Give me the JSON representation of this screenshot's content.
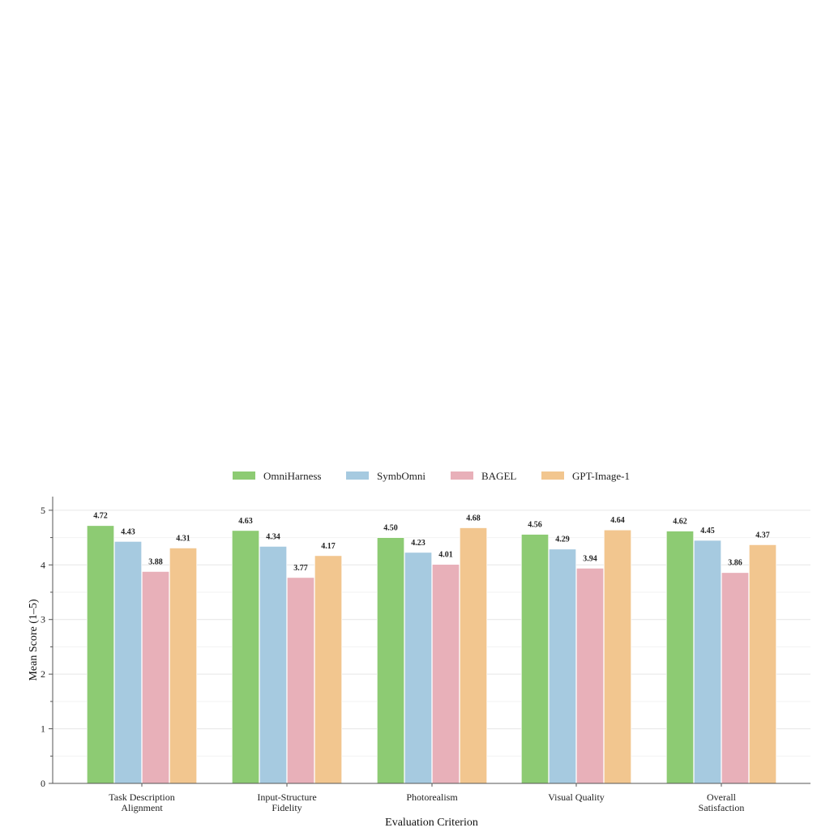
{
  "chart_data": {
    "type": "bar",
    "xlabel": "Evaluation Criterion",
    "ylabel": "Mean Score (1–5)",
    "ylim": [
      0,
      5.25
    ],
    "yticks": [
      0,
      1,
      2,
      3,
      4,
      5
    ],
    "grid": "horizontal",
    "legend_placement": "top-center",
    "categories": [
      [
        "Task Description",
        "Alignment"
      ],
      [
        "Input-Structure",
        "Fidelity"
      ],
      [
        "Photorealism"
      ],
      [
        "Visual Quality"
      ],
      [
        "Overall",
        "Satisfaction"
      ]
    ],
    "series": [
      {
        "name": "OmniHarness",
        "color": "#8dcb73",
        "values": [
          4.72,
          4.63,
          4.5,
          4.56,
          4.62
        ],
        "labels": [
          "4.72",
          "4.63",
          "4.50",
          "4.56",
          "4.62"
        ]
      },
      {
        "name": "SymbOmni",
        "color": "#a6cae0",
        "values": [
          4.43,
          4.34,
          4.23,
          4.29,
          4.45
        ],
        "labels": [
          "4.43",
          "4.34",
          "4.23",
          "4.29",
          "4.45"
        ]
      },
      {
        "name": "BAGEL",
        "color": "#e8b0b9",
        "values": [
          3.88,
          3.77,
          4.01,
          3.94,
          3.86
        ],
        "labels": [
          "3.88",
          "3.77",
          "4.01",
          "3.94",
          "3.86"
        ]
      },
      {
        "name": "GPT-Image-1",
        "color": "#f2c68f",
        "values": [
          4.31,
          4.17,
          4.68,
          4.64,
          4.37
        ],
        "labels": [
          "4.31",
          "4.17",
          "4.68",
          "4.64",
          "4.37"
        ]
      }
    ]
  }
}
